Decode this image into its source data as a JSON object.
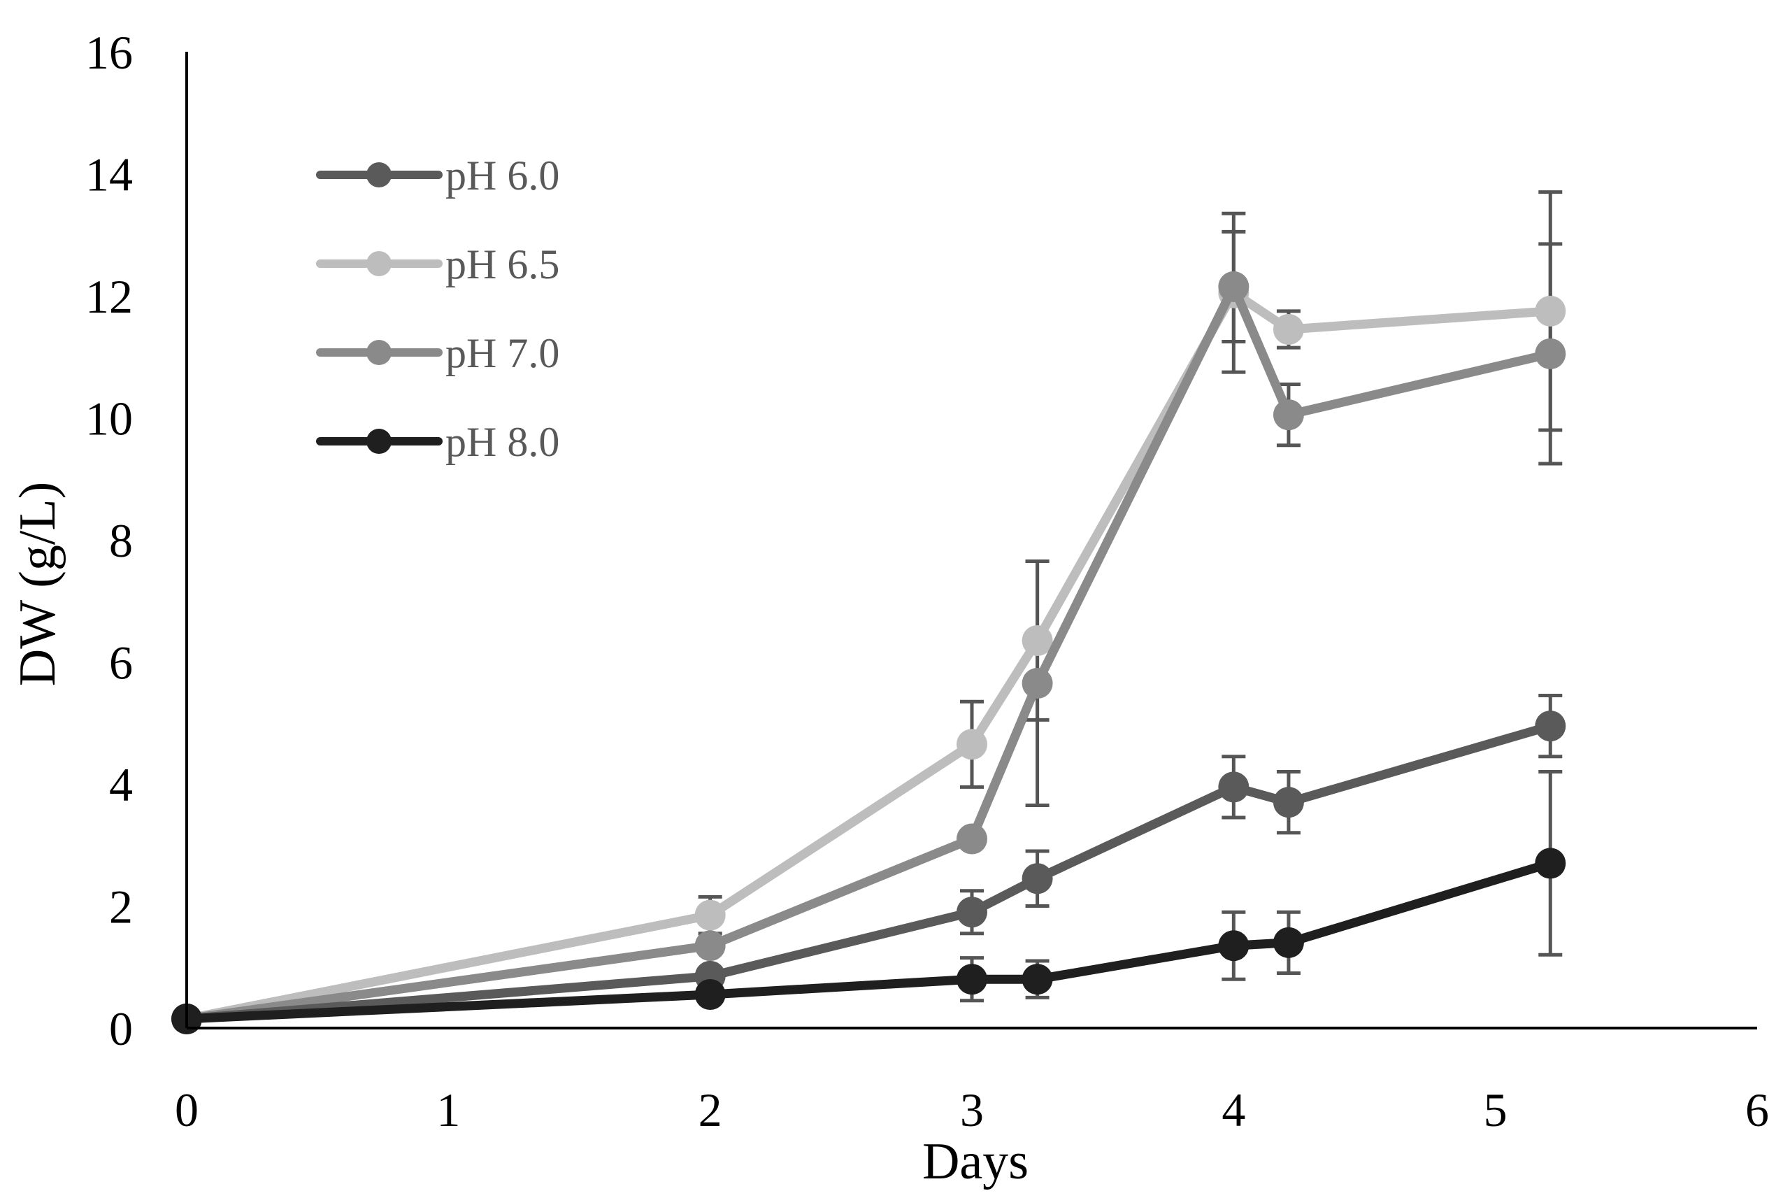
{
  "chart_data": {
    "type": "line",
    "title": "",
    "xlabel": "Days",
    "ylabel": "DW (g/L)",
    "xlim": [
      0,
      6
    ],
    "ylim": [
      0,
      16
    ],
    "xticks": [
      0,
      1,
      2,
      3,
      4,
      5,
      6
    ],
    "yticks": [
      0,
      2,
      4,
      6,
      8,
      10,
      12,
      14,
      16
    ],
    "grid": false,
    "legend_position": "top-left",
    "x": [
      0,
      2,
      3,
      3.25,
      4,
      4.21,
      5.21
    ],
    "series": [
      {
        "name": "pH 6.0",
        "color": "#5a5a5a",
        "values": [
          0.15,
          0.85,
          1.9,
          2.45,
          3.95,
          3.7,
          4.95
        ],
        "errors": [
          0,
          0,
          0.35,
          0.45,
          0.5,
          0.5,
          0.5
        ]
      },
      {
        "name": "pH 6.5",
        "color": "#bdbdbd",
        "values": [
          0.15,
          1.85,
          4.65,
          6.35,
          12.05,
          11.45,
          11.75
        ],
        "errors": [
          0,
          0.3,
          0.7,
          1.3,
          1.3,
          0.3,
          1.95
        ]
      },
      {
        "name": "pH 7.0",
        "color": "#8a8a8a",
        "values": [
          0.15,
          1.35,
          3.1,
          5.65,
          12.15,
          10.05,
          11.05
        ],
        "errors": [
          0,
          0,
          0,
          2.0,
          0.9,
          0.5,
          1.8
        ]
      },
      {
        "name": "pH 8.0",
        "color": "#1f1f1f",
        "values": [
          0.15,
          0.55,
          0.8,
          0.8,
          1.35,
          1.4,
          2.7
        ],
        "errors": [
          0,
          0,
          0.35,
          0.3,
          0.55,
          0.5,
          1.5
        ]
      }
    ]
  },
  "colors": {
    "axis": "#000000",
    "error_bar": "#555555",
    "legend_text": "#595959"
  }
}
